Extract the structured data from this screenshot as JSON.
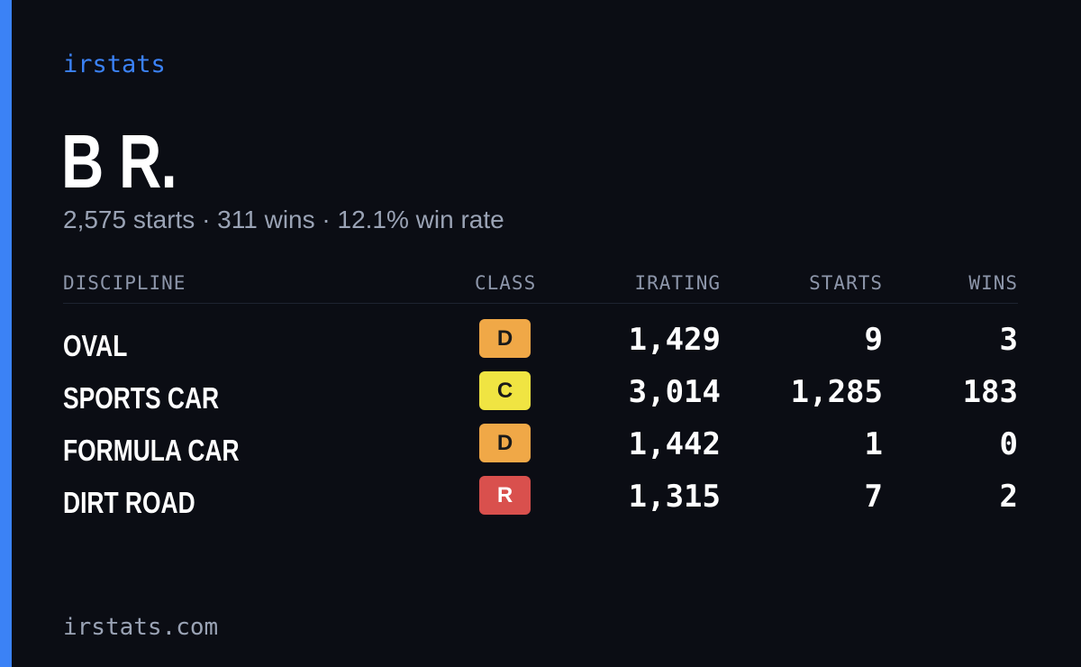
{
  "brand": "irstats",
  "driver": {
    "name": "B R.",
    "summary": "2,575 starts · 311 wins · 12.1% win rate"
  },
  "table": {
    "headers": {
      "discipline": "DISCIPLINE",
      "class": "CLASS",
      "irating": "IRATING",
      "starts": "STARTS",
      "wins": "WINS"
    },
    "rows": [
      {
        "discipline": "OVAL",
        "class": "D",
        "class_color": "#f0a847",
        "irating": "1,429",
        "starts": "9",
        "wins": "3"
      },
      {
        "discipline": "SPORTS CAR",
        "class": "C",
        "class_color": "#f0e442",
        "irating": "3,014",
        "starts": "1,285",
        "wins": "183"
      },
      {
        "discipline": "FORMULA CAR",
        "class": "D",
        "class_color": "#f0a847",
        "irating": "1,442",
        "starts": "1",
        "wins": "0"
      },
      {
        "discipline": "DIRT ROAD",
        "class": "R",
        "class_color": "#d9504d",
        "irating": "1,315",
        "starts": "7",
        "wins": "2"
      }
    ]
  },
  "footer": "irstats.com",
  "colors": {
    "background": "#0b0d14",
    "accent": "#3b82f6",
    "muted_text": "#9aa3b5",
    "class_text_dark": "#1a1a1a",
    "class_text_light": "#ffffff"
  }
}
